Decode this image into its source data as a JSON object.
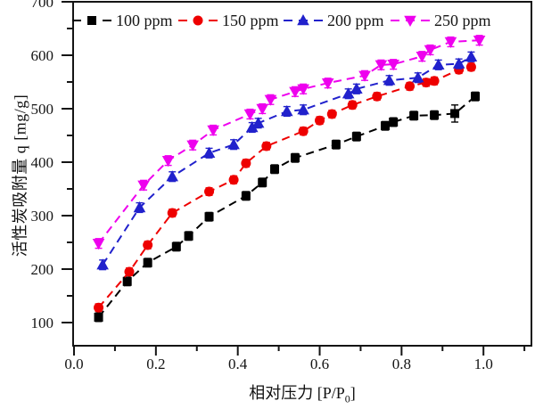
{
  "chart_data": {
    "type": "line",
    "title": "",
    "xlabel_main": "相对压力 [P/P",
    "xlabel_sub": "0",
    "xlabel_suffix": "]",
    "ylabel": "活性炭吸附量 q [mg/g]",
    "grid": false,
    "legend_position": "top-inside-row",
    "x_axis": {
      "min": 0,
      "max": 1.117,
      "major_ticks": [
        0.0,
        0.2,
        0.4,
        0.6,
        0.8,
        1.0
      ],
      "minor_ticks": [
        0.1,
        0.3,
        0.5,
        0.7,
        0.9,
        1.1
      ],
      "tick_labels": [
        "0.0",
        "0.2",
        "0.4",
        "0.6",
        "0.8",
        "1.0"
      ]
    },
    "y_axis": {
      "min": 57,
      "max": 700,
      "major_ticks": [
        100,
        200,
        300,
        400,
        500,
        600,
        700
      ],
      "minor_ticks": [
        150,
        250,
        350,
        450,
        550,
        650
      ],
      "tick_labels": [
        "100",
        "200",
        "300",
        "400",
        "500",
        "600",
        "700"
      ]
    },
    "series": [
      {
        "name": "100 ppm",
        "color": "#000000",
        "marker": "square",
        "line": "dashed",
        "y_err": 8,
        "y_err_overrides": {
          "16": 16
        },
        "x": [
          0.06,
          0.13,
          0.18,
          0.25,
          0.28,
          0.33,
          0.42,
          0.46,
          0.49,
          0.54,
          0.64,
          0.69,
          0.76,
          0.78,
          0.83,
          0.88,
          0.93,
          0.98
        ],
        "y": [
          110,
          177,
          212,
          242,
          262,
          298,
          337,
          362,
          387,
          408,
          433,
          448,
          468,
          475,
          487,
          488,
          491,
          523
        ]
      },
      {
        "name": "150 ppm",
        "color": "#ee0000",
        "marker": "circle",
        "line": "dashed",
        "y_err": 7,
        "y_err_overrides": {},
        "x": [
          0.06,
          0.135,
          0.18,
          0.24,
          0.33,
          0.39,
          0.42,
          0.47,
          0.56,
          0.6,
          0.63,
          0.68,
          0.74,
          0.82,
          0.86,
          0.88,
          0.94,
          0.97
        ],
        "y": [
          128,
          195,
          245,
          305,
          345,
          367,
          398,
          430,
          458,
          478,
          490,
          507,
          523,
          542,
          549,
          552,
          573,
          578
        ]
      },
      {
        "name": "200 ppm",
        "color": "#2121cc",
        "marker": "triangle-up",
        "line": "dashed",
        "y_err": 9,
        "y_err_overrides": {},
        "x": [
          0.07,
          0.16,
          0.24,
          0.33,
          0.39,
          0.435,
          0.45,
          0.52,
          0.56,
          0.67,
          0.69,
          0.77,
          0.84,
          0.89,
          0.94,
          0.97
        ],
        "y": [
          208,
          315,
          373,
          417,
          433,
          465,
          473,
          495,
          498,
          528,
          537,
          553,
          558,
          582,
          584,
          597
        ]
      },
      {
        "name": "250 ppm",
        "color": "#ee00ee",
        "marker": "triangle-down",
        "line": "dashed",
        "y_err": 9,
        "y_err_overrides": {},
        "x": [
          0.06,
          0.17,
          0.23,
          0.29,
          0.34,
          0.43,
          0.46,
          0.48,
          0.54,
          0.56,
          0.62,
          0.71,
          0.75,
          0.78,
          0.85,
          0.87,
          0.92,
          0.99
        ],
        "y": [
          248,
          357,
          403,
          432,
          460,
          490,
          500,
          517,
          532,
          537,
          548,
          562,
          582,
          583,
          598,
          610,
          625,
          628
        ]
      }
    ]
  }
}
